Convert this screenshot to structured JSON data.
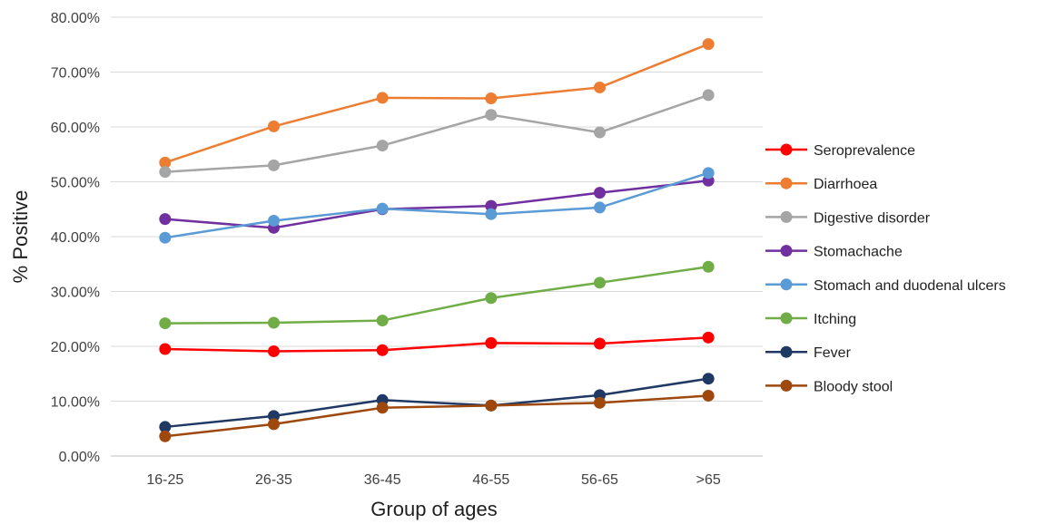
{
  "chart_data": {
    "type": "line",
    "title": "",
    "xlabel": "Group of ages",
    "ylabel": "% Positive",
    "categories": [
      "16-25",
      "26-35",
      "36-45",
      "46-55",
      "56-65",
      ">65"
    ],
    "ylim": [
      0,
      80
    ],
    "y_ticks": [
      0,
      10,
      20,
      30,
      40,
      50,
      60,
      70,
      80
    ],
    "y_tick_labels": [
      "0.00%",
      "10.00%",
      "20.00%",
      "30.00%",
      "40.00%",
      "50.00%",
      "60.00%",
      "70.00%",
      "80.00%"
    ],
    "grid": "horizontal",
    "legend_position": "right",
    "series": [
      {
        "name": "Seroprevalence",
        "color": "#ff0000",
        "values": [
          19.5,
          19.1,
          19.3,
          20.6,
          20.5,
          21.6
        ]
      },
      {
        "name": "Diarrhoea",
        "color": "#ed7d31",
        "values": [
          53.5,
          60.1,
          65.3,
          65.2,
          67.2,
          75.1
        ]
      },
      {
        "name": "Digestive disorder",
        "color": "#a5a5a5",
        "values": [
          51.8,
          53.0,
          56.6,
          62.2,
          59.0,
          65.8
        ]
      },
      {
        "name": "Stomachache",
        "color": "#7030a0",
        "values": [
          43.2,
          41.6,
          45.0,
          45.6,
          48.0,
          50.2
        ]
      },
      {
        "name": "Stomach and duodenal ulcers",
        "color": "#5b9bd5",
        "values": [
          39.8,
          42.9,
          45.1,
          44.1,
          45.3,
          51.6
        ]
      },
      {
        "name": "Itching",
        "color": "#70ad47",
        "values": [
          24.2,
          24.3,
          24.7,
          28.8,
          31.6,
          34.5
        ]
      },
      {
        "name": "Fever",
        "color": "#1f3864",
        "values": [
          5.3,
          7.3,
          10.2,
          9.2,
          11.1,
          14.1
        ]
      },
      {
        "name": "Bloody stool",
        "color": "#9e480e",
        "values": [
          3.6,
          5.8,
          8.8,
          9.2,
          9.7,
          11.0
        ]
      }
    ]
  }
}
